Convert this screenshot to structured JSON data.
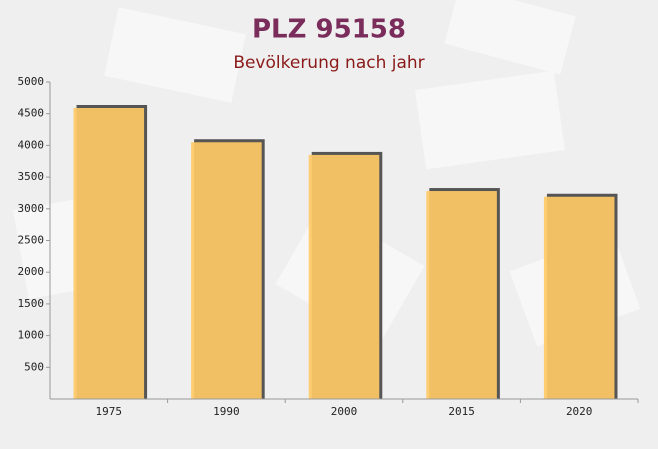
{
  "chart_data": {
    "type": "bar",
    "title": "PLZ 95158",
    "subtitle": "Bevölkerung nach jahr",
    "categories": [
      "1975",
      "1990",
      "2000",
      "2015",
      "2020"
    ],
    "values": [
      4590,
      4050,
      3850,
      3280,
      3190
    ],
    "color": "#ffc966",
    "ylim": [
      0,
      5000
    ],
    "yticks": [
      500,
      1000,
      1500,
      2000,
      2500,
      3000,
      3500,
      4000,
      4500,
      5000
    ],
    "grid": false
  }
}
